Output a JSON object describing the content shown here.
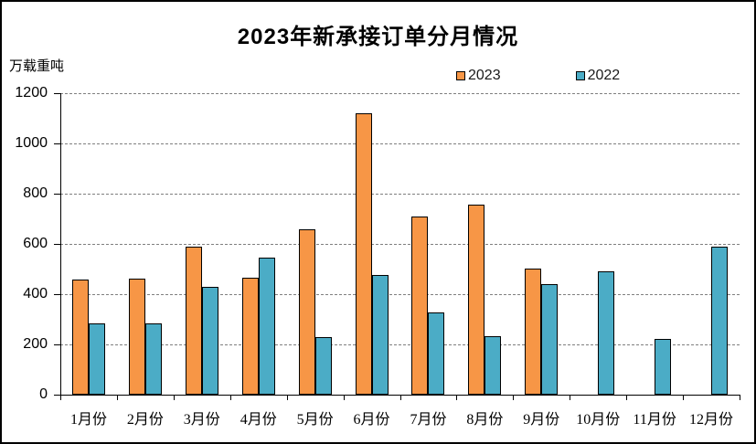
{
  "chart_data": {
    "type": "bar",
    "title": "2023年新承接订单分月情况",
    "ylabel": "万载重吨",
    "xlabel": "",
    "categories": [
      "1月份",
      "2月份",
      "3月份",
      "4月份",
      "5月份",
      "6月份",
      "7月份",
      "8月份",
      "9月份",
      "10月份",
      "11月份",
      "12月份"
    ],
    "series": [
      {
        "name": "2023",
        "color": "#F79646",
        "values": [
          459,
          463,
          590,
          466,
          657,
          1119,
          708,
          755,
          501,
          null,
          null,
          null
        ]
      },
      {
        "name": "2022",
        "color": "#4BACC6",
        "values": [
          284,
          283,
          428,
          546,
          228,
          476,
          327,
          233,
          440,
          491,
          221,
          590
        ]
      }
    ],
    "ylim": [
      0,
      1200
    ],
    "yticks": [
      0,
      200,
      400,
      600,
      800,
      1000,
      1200
    ],
    "grid": "horizontal-dashed",
    "legend_position": "top",
    "axis_color": "#000000",
    "gridline_color": "#7f7f7f"
  }
}
